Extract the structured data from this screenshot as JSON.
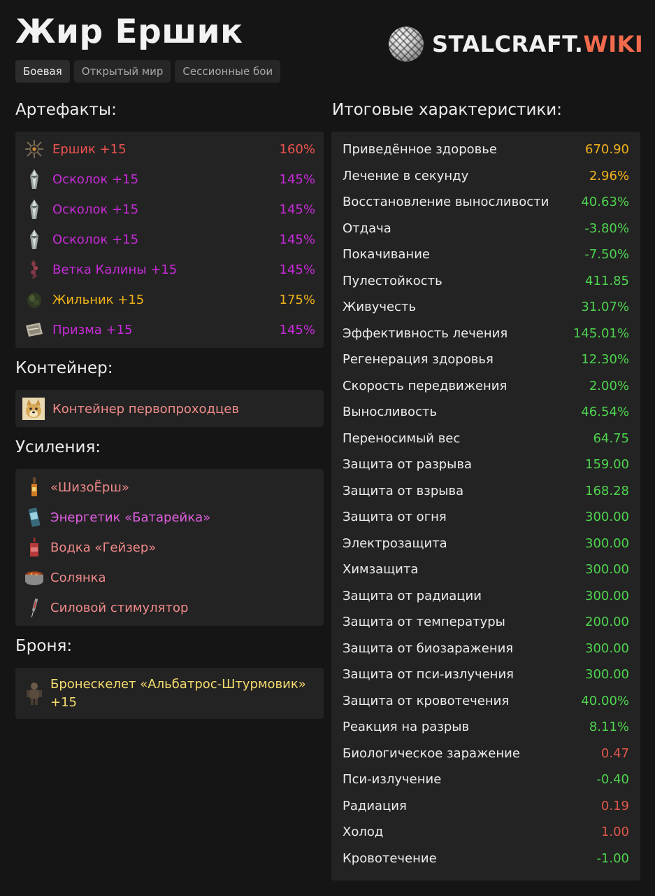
{
  "title": "Жир Ершик",
  "logo": {
    "main": "STALCRAFT.",
    "accent": "WIKI"
  },
  "tabs": [
    {
      "label": "Боевая",
      "active": true
    },
    {
      "label": "Открытый мир",
      "active": false
    },
    {
      "label": "Сессионные бои",
      "active": false
    }
  ],
  "sections": {
    "artifacts": "Артефакты:",
    "container": "Контейнер:",
    "boosts": "Усиления:",
    "armor": "Броня:",
    "stats": "Итоговые характеристики:"
  },
  "artifacts": [
    {
      "name": "Ершик +15",
      "pct": "160%",
      "color": "#ef5350",
      "icon": "spiky-ball-icon"
    },
    {
      "name": "Осколок +15",
      "pct": "145%",
      "color": "#c72bd8",
      "icon": "crystal-shard-icon"
    },
    {
      "name": "Осколок +15",
      "pct": "145%",
      "color": "#c72bd8",
      "icon": "crystal-shard-icon"
    },
    {
      "name": "Осколок +15",
      "pct": "145%",
      "color": "#c72bd8",
      "icon": "crystal-shard-icon"
    },
    {
      "name": "Ветка Калины +15",
      "pct": "145%",
      "color": "#c72bd8",
      "icon": "berry-branch-icon"
    },
    {
      "name": "Жильник +15",
      "pct": "175%",
      "color": "#f0b21a",
      "icon": "moss-vein-icon"
    },
    {
      "name": "Призма +15",
      "pct": "145%",
      "color": "#c72bd8",
      "icon": "prism-icon"
    }
  ],
  "container": {
    "name": "Контейнер первопроходцев",
    "icon": "doge-icon"
  },
  "boosts": [
    {
      "name": "«ШизоЁрш»",
      "color": "#f08a8a",
      "icon": "bottle-icon"
    },
    {
      "name": "Энергетик «Батарейка»",
      "color": "#e05fe0",
      "icon": "energy-can-icon"
    },
    {
      "name": "Водка «Гейзер»",
      "color": "#f08a8a",
      "icon": "vodka-bottle-icon"
    },
    {
      "name": "Солянка",
      "color": "#f08a8a",
      "icon": "soup-pot-icon"
    },
    {
      "name": "Силовой стимулятор",
      "color": "#f08a8a",
      "icon": "syringe-icon"
    }
  ],
  "armor": {
    "name_line1": "Бронескелет «Альбатрос-Штурмовик»",
    "name_line2": "+15",
    "icon": "armor-suit-icon"
  },
  "stats": [
    {
      "label": "Приведённое здоровье",
      "value": "670.90",
      "color": "#f0b21a"
    },
    {
      "label": "Лечение в секунду",
      "value": "2.96%",
      "color": "#f0b21a"
    },
    {
      "label": "Восстановление выносливости",
      "value": "40.63%",
      "color": "#4fd44f"
    },
    {
      "label": "Отдача",
      "value": "-3.80%",
      "color": "#4fd44f"
    },
    {
      "label": "Покачивание",
      "value": "-7.50%",
      "color": "#4fd44f"
    },
    {
      "label": "Пулестойкость",
      "value": "411.85",
      "color": "#4fd44f"
    },
    {
      "label": "Живучесть",
      "value": "31.07%",
      "color": "#4fd44f"
    },
    {
      "label": "Эффективность лечения",
      "value": "145.01%",
      "color": "#4fd44f"
    },
    {
      "label": "Регенерация здоровья",
      "value": "12.30%",
      "color": "#4fd44f"
    },
    {
      "label": "Скорость передвижения",
      "value": "2.00%",
      "color": "#4fd44f"
    },
    {
      "label": "Выносливость",
      "value": "46.54%",
      "color": "#4fd44f"
    },
    {
      "label": "Переносимый вес",
      "value": "64.75",
      "color": "#4fd44f"
    },
    {
      "label": "Защита от разрыва",
      "value": "159.00",
      "color": "#4fd44f"
    },
    {
      "label": "Защита от взрыва",
      "value": "168.28",
      "color": "#4fd44f"
    },
    {
      "label": "Защита от огня",
      "value": "300.00",
      "color": "#4fd44f"
    },
    {
      "label": "Электрозащита",
      "value": "300.00",
      "color": "#4fd44f"
    },
    {
      "label": "Химзащита",
      "value": "300.00",
      "color": "#4fd44f"
    },
    {
      "label": "Защита от радиации",
      "value": "300.00",
      "color": "#4fd44f"
    },
    {
      "label": "Защита от температуры",
      "value": "200.00",
      "color": "#4fd44f"
    },
    {
      "label": "Защита от биозаражения",
      "value": "300.00",
      "color": "#4fd44f"
    },
    {
      "label": "Защита от пси-излучения",
      "value": "300.00",
      "color": "#4fd44f"
    },
    {
      "label": "Защита от кровотечения",
      "value": "40.00%",
      "color": "#4fd44f"
    },
    {
      "label": "Реакция на разрыв",
      "value": "8.11%",
      "color": "#4fd44f"
    },
    {
      "label": "Биологическое заражение",
      "value": "0.47",
      "color": "#e0574a"
    },
    {
      "label": "Пси-излучение",
      "value": "-0.40",
      "color": "#4fd44f"
    },
    {
      "label": "Радиация",
      "value": "0.19",
      "color": "#e0574a"
    },
    {
      "label": "Холод",
      "value": "1.00",
      "color": "#e0574a"
    },
    {
      "label": "Кровотечение",
      "value": "-1.00",
      "color": "#4fd44f"
    }
  ]
}
